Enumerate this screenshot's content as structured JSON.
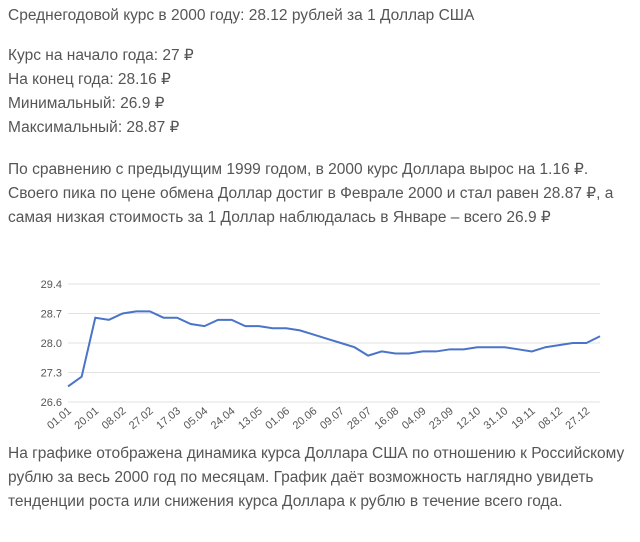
{
  "paragraphs": {
    "average": "Среднегодовой курс в 2000 году: 28.12 рублей за 1 Доллар США",
    "stats": [
      "Курс на начало года: 27 ₽",
      "На конец года: 28.16 ₽",
      "Минимальный: 26.9 ₽",
      "Максимальный: 28.87 ₽"
    ],
    "comparison": "По сравнению с предыдущим 1999 годом, в 2000 курс Доллара вырос на 1.16 ₽. Своего пика по цене обмена Доллар достиг в Феврале 2000 и стал равен 28.87 ₽, а самая низкая стоимость за 1 Доллар наблюдалась в Январе – всего 26.9 ₽",
    "description": "На графике отображена динамика курса Доллара США по отношению к Российскому рублю за весь 2000 год по месяцам. График даёт возможность наглядно увидеть тенденции роста или снижения курса Доллара к рублю в течение всего года."
  },
  "chart_data": {
    "type": "line",
    "color": "#4a74c9",
    "grid": true,
    "categories": [
      "01.01",
      null,
      "20.01",
      null,
      "08.02",
      null,
      "27.02",
      null,
      "17.03",
      null,
      "05.04",
      null,
      "24.04",
      null,
      "13.05",
      null,
      "01.06",
      null,
      "20.06",
      null,
      "09.07",
      null,
      "28.07",
      null,
      "16.08",
      null,
      "04.09",
      null,
      "23.09",
      null,
      "12.10",
      null,
      "31.10",
      null,
      "19.11",
      null,
      "08.12",
      null,
      "27.12",
      null
    ],
    "values": [
      26.97,
      27.2,
      28.6,
      28.55,
      28.7,
      28.75,
      28.75,
      28.6,
      28.6,
      28.45,
      28.4,
      28.55,
      28.55,
      28.4,
      28.4,
      28.35,
      28.35,
      28.3,
      28.2,
      28.1,
      28.0,
      27.9,
      27.7,
      27.8,
      27.75,
      27.75,
      27.8,
      27.8,
      27.85,
      27.85,
      27.9,
      27.9,
      27.9,
      27.85,
      27.8,
      27.9,
      27.95,
      28.0,
      28.0,
      28.16
    ],
    "ylim": [
      26.6,
      29.4
    ],
    "yticks": [
      26.6,
      27.3,
      {
        "value": 28,
        "label": "28.0"
      },
      28.7,
      29.4
    ]
  }
}
